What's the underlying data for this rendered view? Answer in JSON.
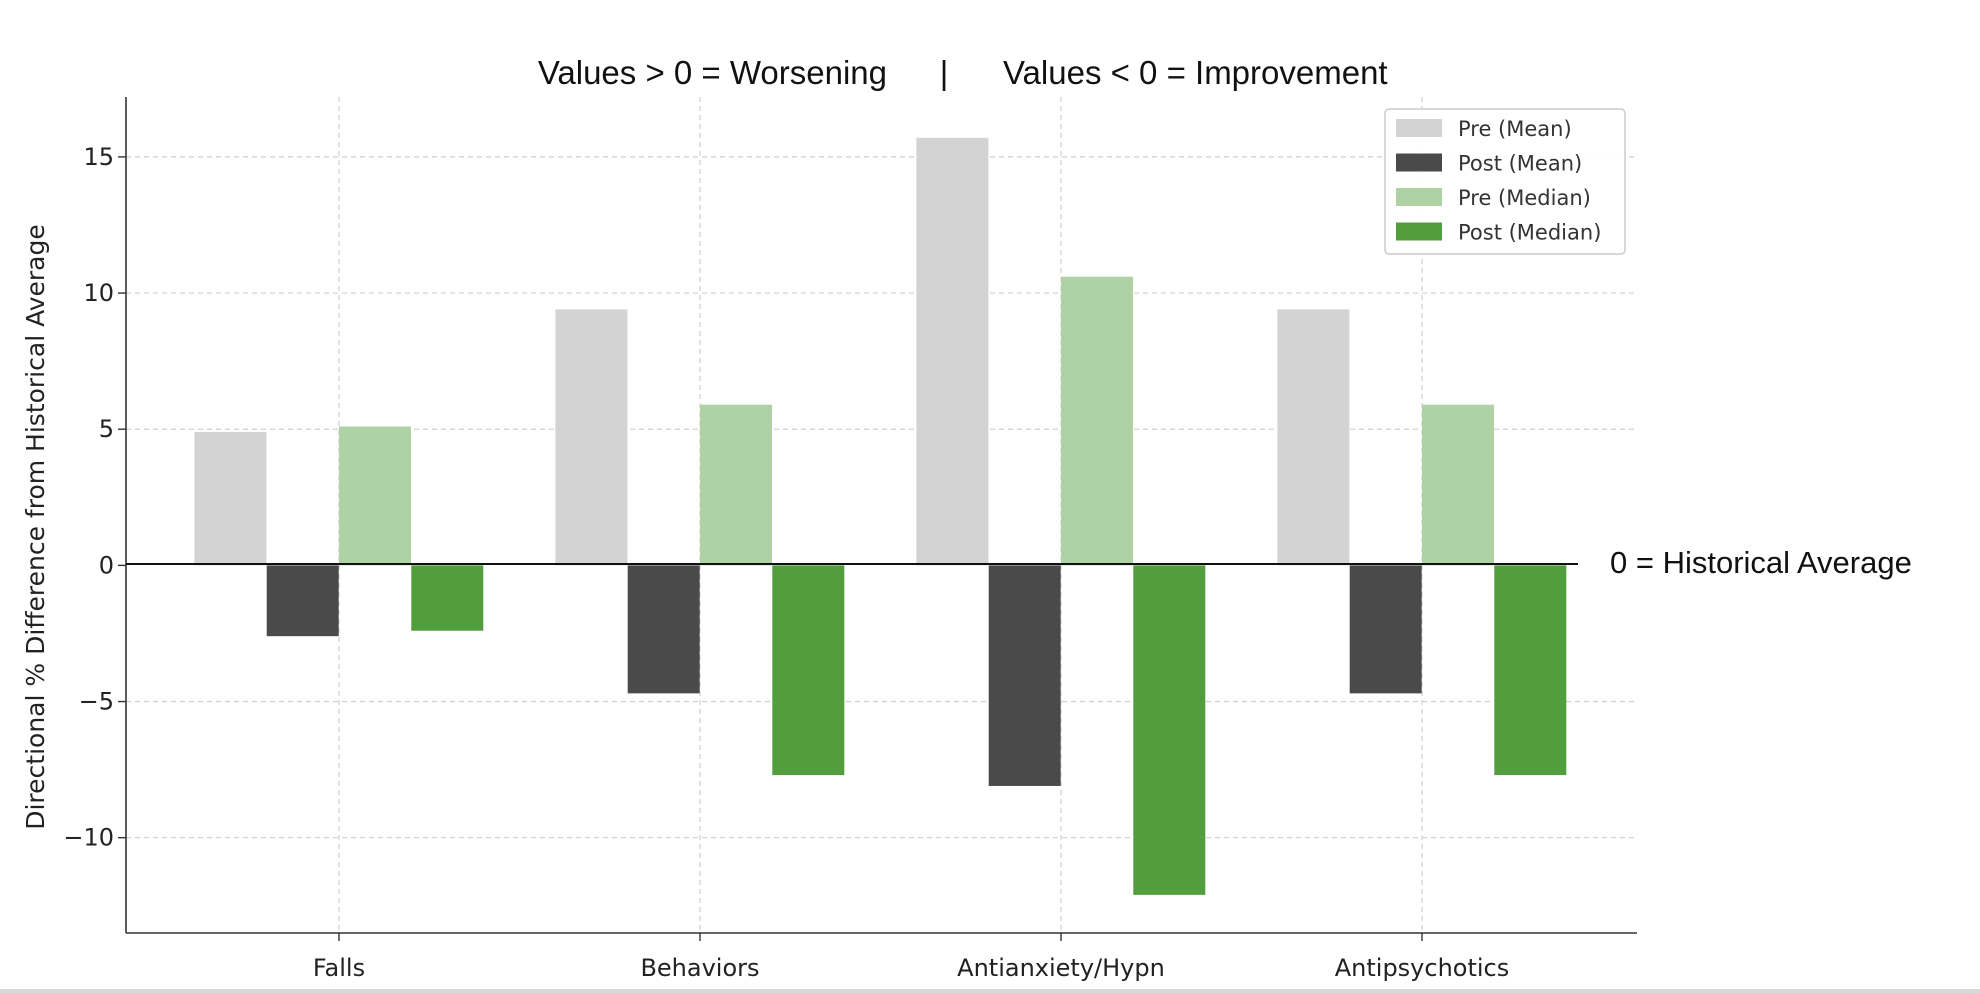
{
  "chart_data": {
    "type": "bar",
    "title_left": "Values > 0 = Worsening",
    "title_separator": "|",
    "title_right": "Values < 0 = Improvement",
    "zero_line_label": "0 = Historical Average",
    "xlabel": "",
    "ylabel": "Directional % Difference from Historical Average",
    "ylim": [
      -13.5,
      17.2
    ],
    "yticks": [
      -10,
      -5,
      0,
      5,
      10,
      15
    ],
    "ytick_labels": [
      "−10",
      "−5",
      "0",
      "5",
      "10",
      "15"
    ],
    "grid": true,
    "legend_position": "top-right",
    "categories": [
      "Falls",
      "Behaviors",
      "Antianxiety/Hypn",
      "Antipsychotics"
    ],
    "series": [
      {
        "name": "Pre (Mean)",
        "color": "#d3d3d3",
        "values": [
          4.9,
          9.4,
          15.7,
          9.4
        ]
      },
      {
        "name": "Post (Mean)",
        "color": "#4a4a4a",
        "values": [
          -2.6,
          -4.7,
          -8.1,
          -4.7
        ]
      },
      {
        "name": "Pre (Median)",
        "color": "#aed2a3",
        "values": [
          5.1,
          5.9,
          10.6,
          5.9
        ]
      },
      {
        "name": "Post (Median)",
        "color": "#529d3e",
        "values": [
          -2.4,
          -7.7,
          -12.1,
          -7.7
        ]
      }
    ]
  }
}
